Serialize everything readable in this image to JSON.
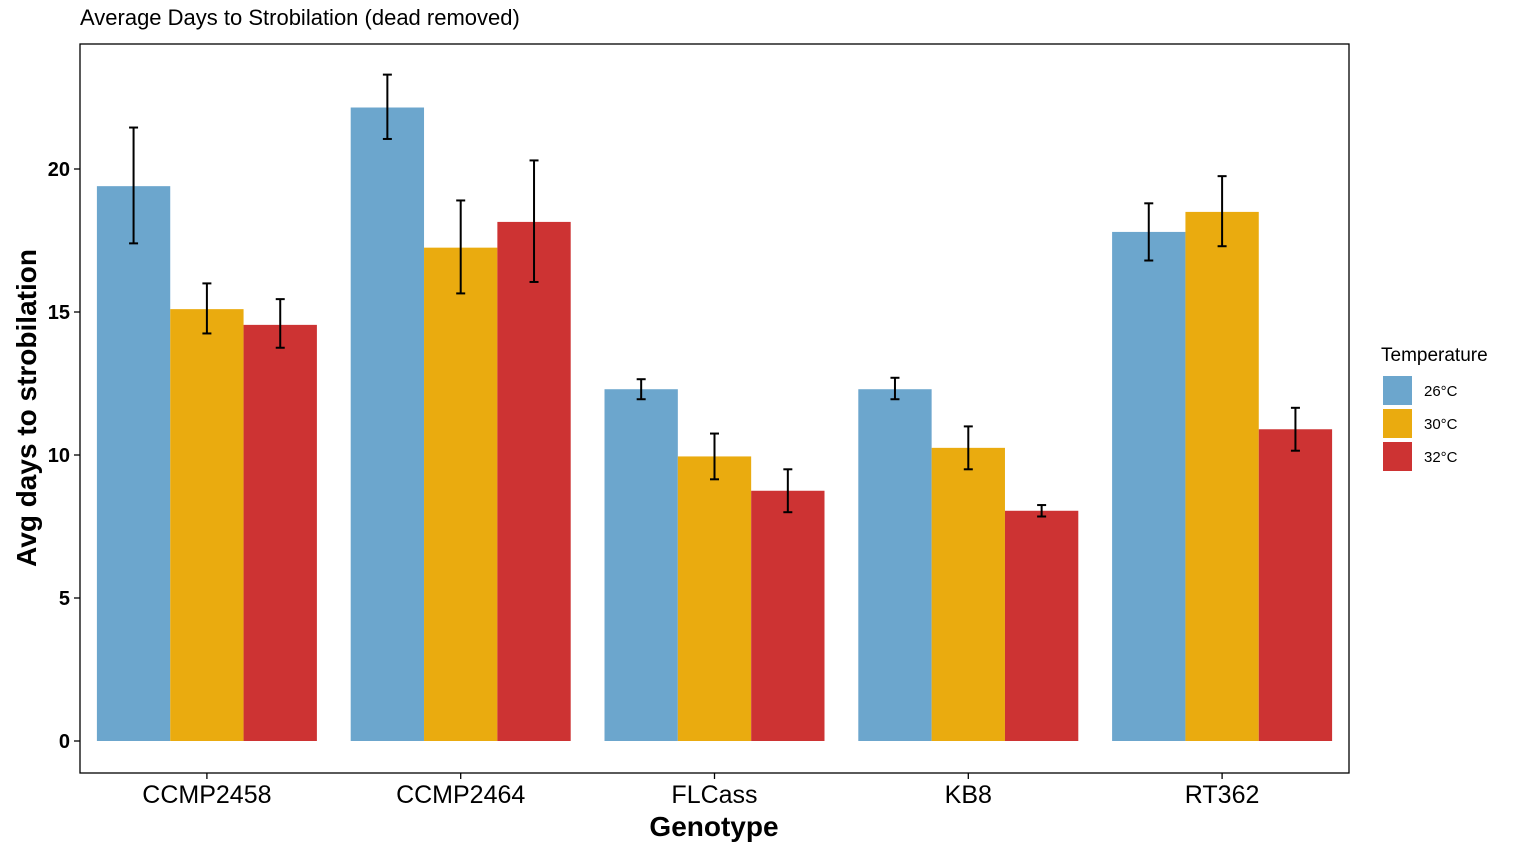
{
  "chart_data": {
    "type": "bar",
    "title": "Average Days to Strobilation (dead removed)",
    "xlabel": "Genotype",
    "ylabel": "Avg days to strobilation",
    "categories": [
      "CCMP2458",
      "CCMP2464",
      "FLCass",
      "KB8",
      "RT362"
    ],
    "ylim": [
      -1.1,
      24.4
    ],
    "yticks": [
      0,
      5,
      10,
      15,
      20
    ],
    "grid": false,
    "legend": {
      "title": "Temperature",
      "position": "right"
    },
    "series": [
      {
        "name": "26°C",
        "color": "#6ca6cd",
        "values": [
          19.4,
          22.15,
          12.3,
          12.3,
          17.8
        ],
        "err_low": [
          17.4,
          21.05,
          11.95,
          11.95,
          16.8
        ],
        "err_high": [
          21.45,
          23.3,
          12.65,
          12.7,
          18.8
        ]
      },
      {
        "name": "30°C",
        "color": "#eaab0f",
        "values": [
          15.1,
          17.25,
          9.95,
          10.25,
          18.5
        ],
        "err_low": [
          14.25,
          15.65,
          9.15,
          9.5,
          17.3
        ],
        "err_high": [
          16.0,
          18.9,
          10.75,
          11.0,
          19.75
        ]
      },
      {
        "name": "32°C",
        "color": "#cd3333",
        "values": [
          14.55,
          18.15,
          8.75,
          8.05,
          10.9
        ],
        "err_low": [
          13.75,
          16.05,
          8.0,
          7.85,
          10.15
        ],
        "err_high": [
          15.45,
          20.3,
          9.5,
          8.25,
          11.65
        ]
      }
    ]
  }
}
